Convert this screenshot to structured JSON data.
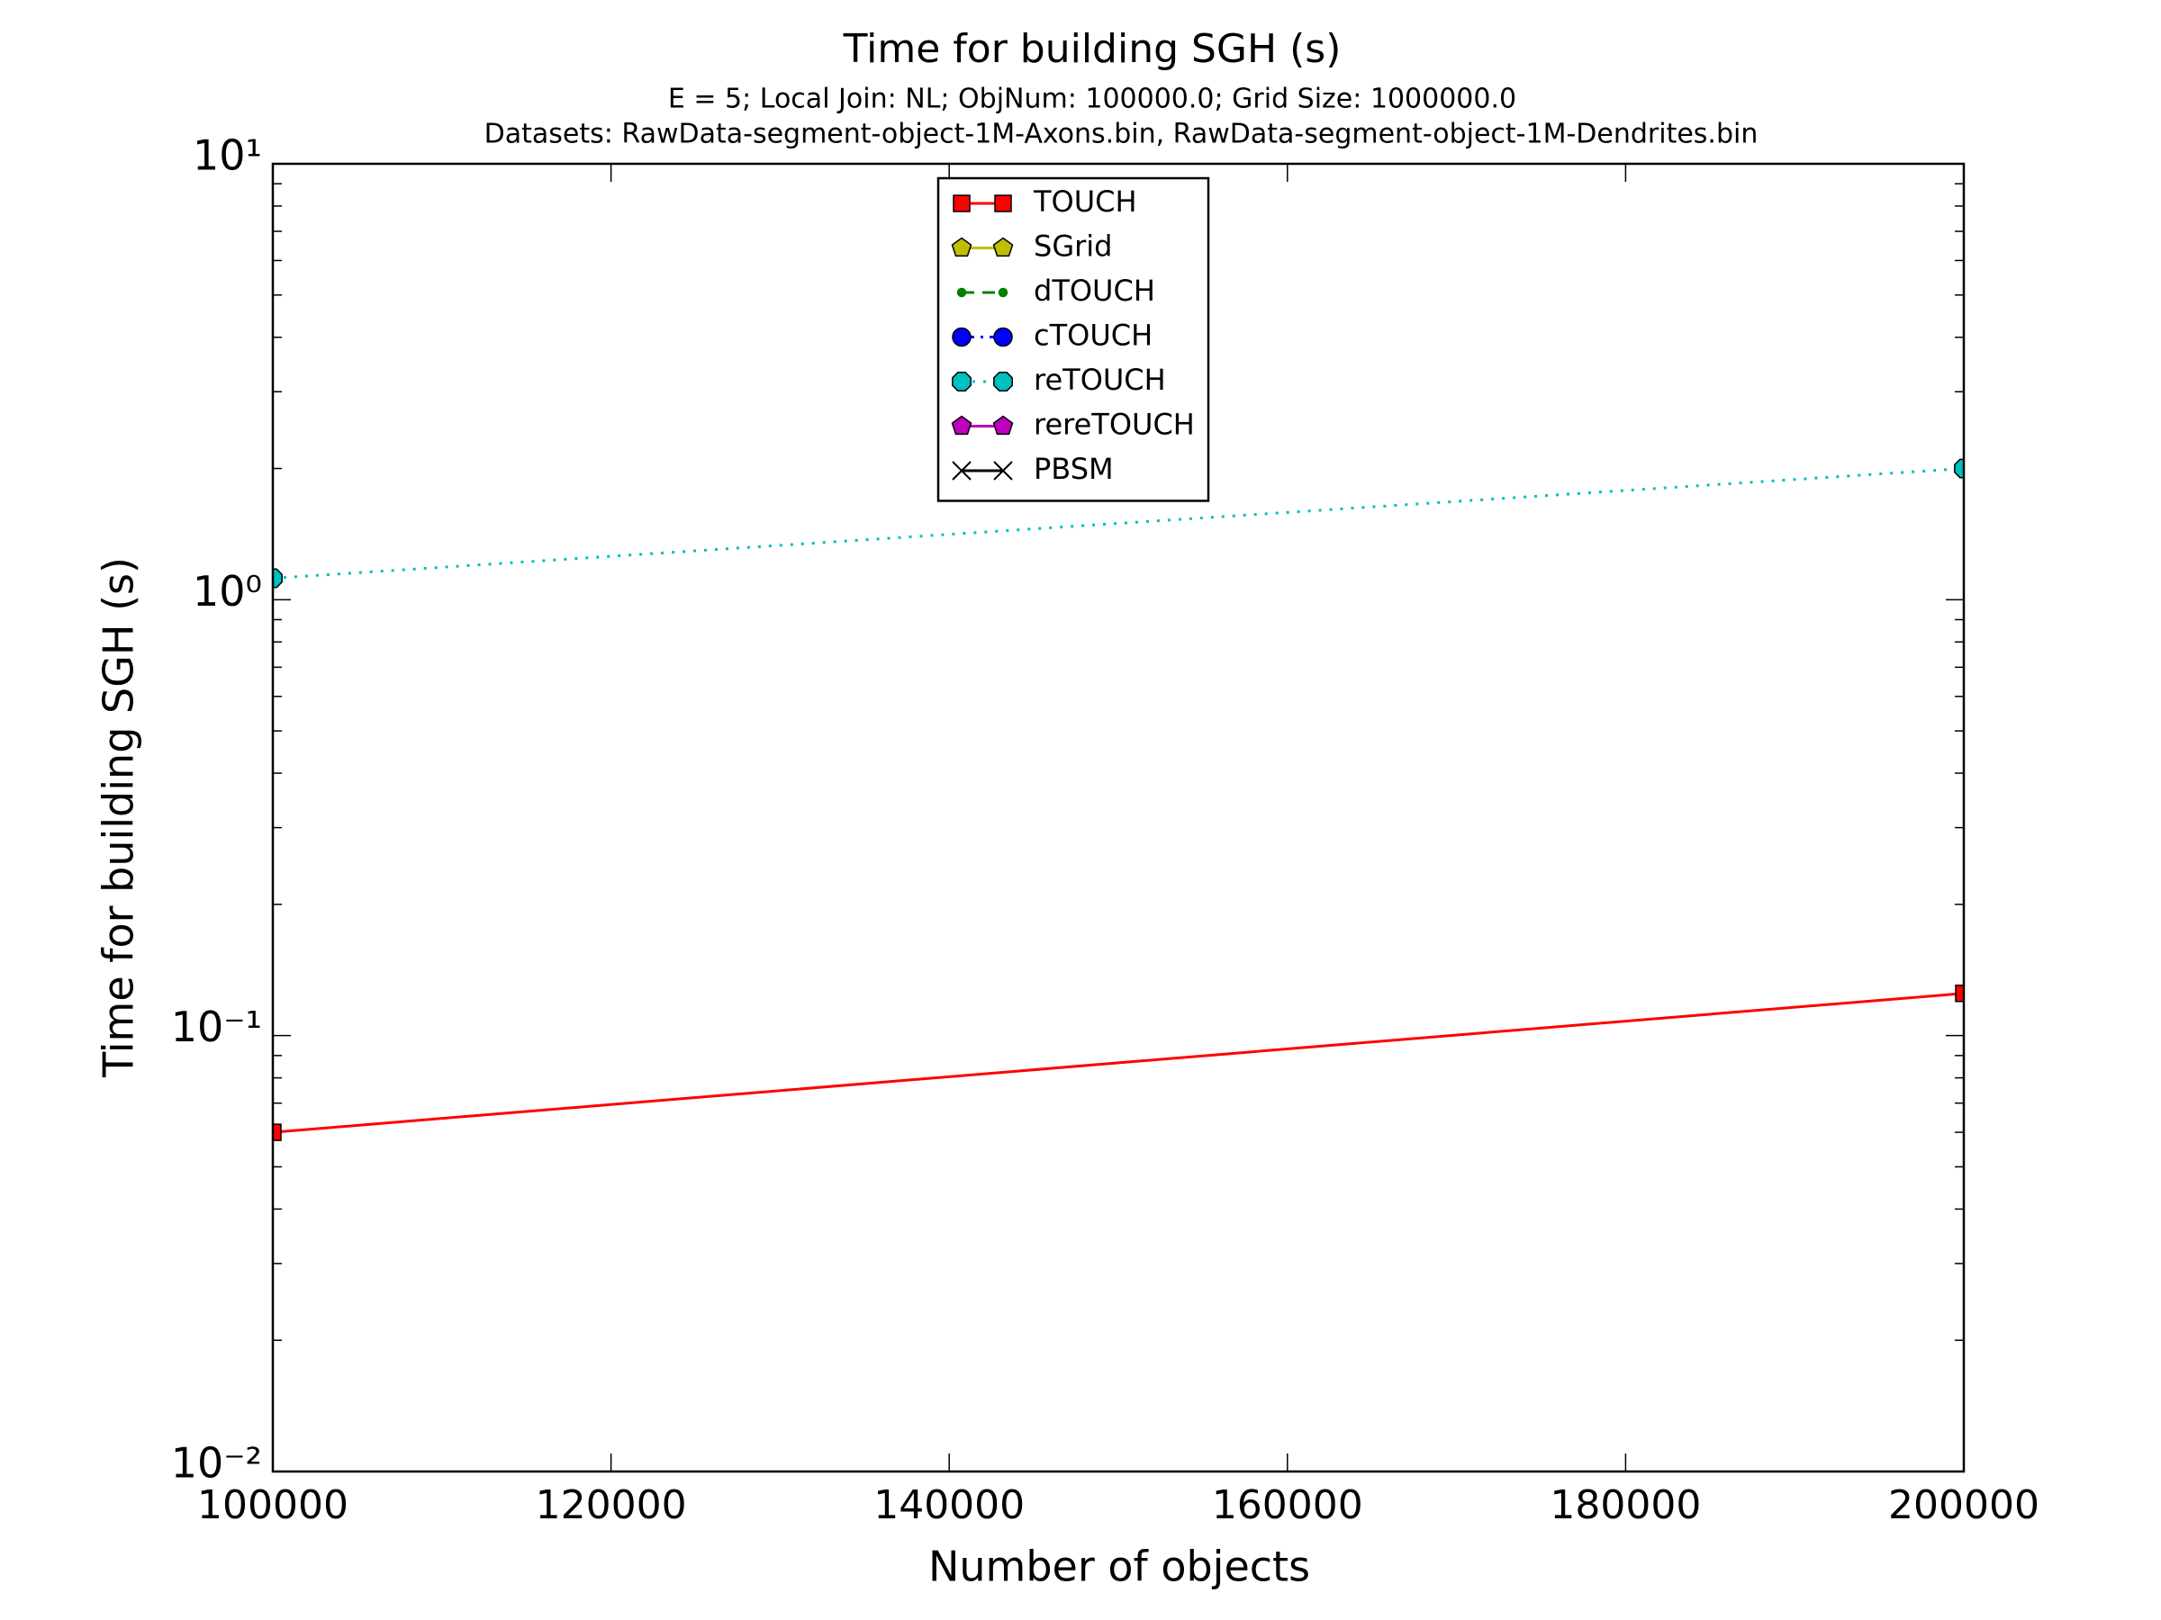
{
  "chart_data": {
    "type": "line",
    "title": "Time for building SGH (s)",
    "subtitle": [
      "E = 5; Local Join: NL; ObjNum: 100000.0; Grid Size: 1000000.0",
      "Datasets: RawData-segment-object-1M-Axons.bin, RawData-segment-object-1M-Dendrites.bin"
    ],
    "x_label": "Number of objects",
    "y_label": "Time for building SGH (s)",
    "x": [
      100000,
      200000
    ],
    "xlim": [
      100000,
      200000
    ],
    "xticks": [
      100000,
      120000,
      140000,
      160000,
      180000,
      200000
    ],
    "ylim": [
      0.01,
      10
    ],
    "yticks": [
      {
        "value": 0.01,
        "label": "10⁻²"
      },
      {
        "value": 0.1,
        "label": "10⁻¹"
      },
      {
        "value": 1,
        "label": "10⁰"
      },
      {
        "value": 10,
        "label": "10¹"
      }
    ],
    "y_scale": "log",
    "legend": "upper center",
    "series": [
      {
        "name": "TOUCH",
        "color": "#ff0000",
        "marker": "square",
        "linestyle": "solid",
        "values": [
          0.06,
          0.125
        ]
      },
      {
        "name": "SGrid",
        "color": "#bfbf00",
        "marker": "pentagon",
        "linestyle": "solid",
        "values": [
          null,
          null
        ]
      },
      {
        "name": "dTOUCH",
        "color": "#008000",
        "marker": "dot",
        "linestyle": "dashed",
        "values": [
          null,
          null
        ]
      },
      {
        "name": "cTOUCH",
        "color": "#0000ff",
        "marker": "circle",
        "linestyle": "dashdot",
        "values": [
          null,
          null
        ]
      },
      {
        "name": "reTOUCH",
        "color": "#00bfbf",
        "marker": "octagon",
        "linestyle": "dotted",
        "values": [
          1.12,
          2.0
        ]
      },
      {
        "name": "rereTOUCH",
        "color": "#bf00bf",
        "marker": "pentagon",
        "linestyle": "solid",
        "values": [
          null,
          null
        ]
      },
      {
        "name": "PBSM",
        "color": "#000000",
        "marker": "x",
        "linestyle": "solid",
        "values": [
          null,
          null
        ]
      }
    ]
  }
}
